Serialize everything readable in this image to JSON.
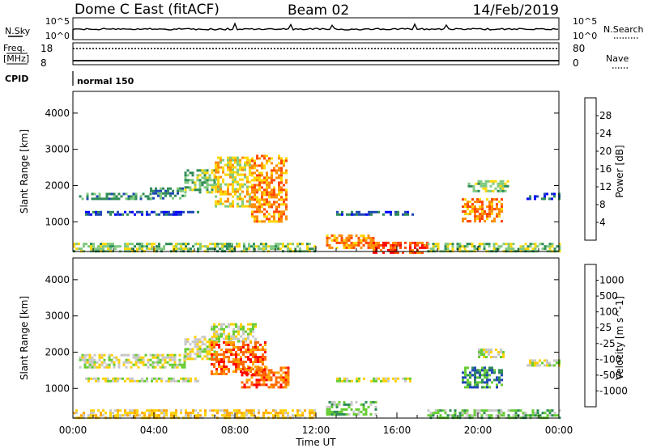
{
  "header": {
    "station": "Dome C East (fitACF)",
    "beam": "Beam 02",
    "date": "14/Feb/2019"
  },
  "status_panels": {
    "nsky_label": "N.Sky",
    "nsky_ticks": [
      "10^5",
      "10^0"
    ],
    "nsearch_label": "N.Search",
    "nsearch_ticks": [
      "10^5",
      "10^0"
    ],
    "freq_label": "Freq.",
    "freq_unit": "[MHz]",
    "freq_ticks": [
      "18",
      "8"
    ],
    "nave_label": "Nave",
    "nave_ticks": [
      "80",
      "0"
    ],
    "cpid_label": "CPID",
    "cpid_value": "normal 150"
  },
  "chart_data": [
    {
      "type": "heatmap",
      "name": "power",
      "ylabel": "Slant Range [km]",
      "ylim": [
        180,
        4600
      ],
      "yticks": [
        "4000",
        "3000",
        "2000",
        "1000"
      ],
      "colorbar": {
        "label": "Power [dB]",
        "ticks": [
          "28",
          "24",
          "20",
          "16",
          "12",
          "8",
          "4"
        ],
        "colors": [
          "#0000ff",
          "#1e46b4",
          "#2e8b57",
          "#7fc97f",
          "#ffd700",
          "#ff8c00",
          "#ff4500",
          "#ff0000"
        ]
      },
      "regions": [
        {
          "t0": 0.3,
          "t1": 3.8,
          "r0": 1600,
          "r1": 1800,
          "c": 2
        },
        {
          "t0": 3.8,
          "t1": 5.5,
          "r0": 1650,
          "r1": 1950,
          "c": 2
        },
        {
          "t0": 5.5,
          "t1": 7.0,
          "r0": 1800,
          "r1": 2450,
          "c": 3
        },
        {
          "t0": 7.0,
          "t1": 8.8,
          "r0": 1400,
          "r1": 2800,
          "c": 4
        },
        {
          "t0": 8.8,
          "t1": 10.6,
          "r0": 1000,
          "r1": 2850,
          "c": 5
        },
        {
          "t0": 0.6,
          "t1": 6.2,
          "r0": 1200,
          "r1": 1300,
          "c": 1
        },
        {
          "t0": 12.5,
          "t1": 14.8,
          "r0": 250,
          "r1": 650,
          "c": 5
        },
        {
          "t0": 14.8,
          "t1": 17.5,
          "r0": 180,
          "r1": 450,
          "c": 6
        },
        {
          "t0": 13.0,
          "t1": 16.8,
          "r0": 1200,
          "r1": 1300,
          "c": 1
        },
        {
          "t0": 19.2,
          "t1": 21.2,
          "r0": 1000,
          "r1": 1650,
          "c": 5
        },
        {
          "t0": 19.5,
          "t1": 21.5,
          "r0": 1850,
          "r1": 2150,
          "c": 3
        },
        {
          "t0": 22.4,
          "t1": 24.0,
          "r0": 1600,
          "r1": 1800,
          "c": 1
        },
        {
          "t0": 0.0,
          "t1": 12.0,
          "r0": 180,
          "r1": 420,
          "c": 3
        },
        {
          "t0": 17.5,
          "t1": 24.0,
          "r0": 180,
          "r1": 420,
          "c": 3
        }
      ]
    },
    {
      "type": "heatmap",
      "name": "velocity",
      "xlabel": "Time UT",
      "ylabel": "Slant Range [km]",
      "ylim": [
        180,
        4600
      ],
      "yticks": [
        "4000",
        "3000",
        "2000",
        "1000"
      ],
      "xticks": [
        "00:00",
        "04:00",
        "08:00",
        "12:00",
        "16:00",
        "20:00",
        "00:00"
      ],
      "colorbar": {
        "label": "Velocity [m s^-1]",
        "ticks": [
          "1000",
          "500",
          "100",
          "25",
          "-25",
          "-100",
          "-500",
          "-1000"
        ],
        "colors": [
          "#ff0000",
          "#ff6a00",
          "#ffa500",
          "#ffd000",
          "#c8c8c8",
          "#66cc33",
          "#2e8b57",
          "#1e46b4",
          "#0000ff"
        ]
      },
      "regions": [
        {
          "t0": 0.3,
          "t1": 5.5,
          "r0": 1600,
          "r1": 1950,
          "c": 4
        },
        {
          "t0": 5.5,
          "t1": 7.0,
          "r0": 1800,
          "r1": 2450,
          "c": 4
        },
        {
          "t0": 6.8,
          "t1": 9.0,
          "r0": 2300,
          "r1": 2800,
          "c": 4
        },
        {
          "t0": 6.8,
          "t1": 9.5,
          "r0": 1400,
          "r1": 2300,
          "c": 1
        },
        {
          "t0": 8.3,
          "t1": 10.6,
          "r0": 1000,
          "r1": 1600,
          "c": 1
        },
        {
          "t0": 0.6,
          "t1": 6.2,
          "r0": 1200,
          "r1": 1300,
          "c": 4
        },
        {
          "t0": 12.5,
          "t1": 15.0,
          "r0": 250,
          "r1": 650,
          "c": 5
        },
        {
          "t0": 13.0,
          "t1": 16.8,
          "r0": 1200,
          "r1": 1300,
          "c": 4
        },
        {
          "t0": 19.2,
          "t1": 21.2,
          "r0": 1000,
          "r1": 1600,
          "c": 6
        },
        {
          "t0": 20.0,
          "t1": 21.3,
          "r0": 1850,
          "r1": 2100,
          "c": 4
        },
        {
          "t0": 22.4,
          "t1": 24.0,
          "r0": 1600,
          "r1": 1800,
          "c": 4
        },
        {
          "t0": 0.0,
          "t1": 12.0,
          "r0": 180,
          "r1": 420,
          "c": 3
        },
        {
          "t0": 17.5,
          "t1": 24.0,
          "r0": 180,
          "r1": 420,
          "c": 5
        }
      ]
    }
  ]
}
